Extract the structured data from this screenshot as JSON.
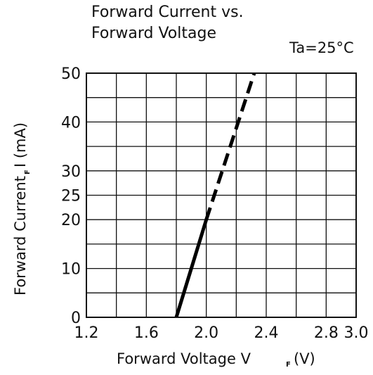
{
  "chart_data": {
    "type": "line",
    "title_line1": "Forward Current vs.",
    "title_line2": "Forward Voltage",
    "condition": "Ta=25°C",
    "xlabel_main": "Forward Voltage   V",
    "xlabel_sub": "F",
    "xlabel_unit": "(V)",
    "ylabel_main": "Forward Current",
    "ylabel_sub": "F",
    "ylabel_unit": "I (mA)",
    "xlim": [
      1.2,
      3.0
    ],
    "ylim": [
      0,
      50
    ],
    "x_ticks": [
      {
        "value": 1.2,
        "label": "1.2"
      },
      {
        "value": 1.6,
        "label": "1.6"
      },
      {
        "value": 2.0,
        "label": "2.0"
      },
      {
        "value": 2.4,
        "label": "2.4"
      },
      {
        "value": 2.8,
        "label": "2.8"
      },
      {
        "value": 3.0,
        "label": "3.0"
      }
    ],
    "y_ticks": [
      {
        "value": 0,
        "label": "0"
      },
      {
        "value": 10,
        "label": "10"
      },
      {
        "value": 20,
        "label": "20"
      },
      {
        "value": 25,
        "label": "25"
      },
      {
        "value": 30,
        "label": "30"
      },
      {
        "value": 40,
        "label": "40"
      },
      {
        "value": 50,
        "label": "50"
      }
    ],
    "grid": true,
    "x_gridlines": [
      1.2,
      1.4,
      1.6,
      1.8,
      2.0,
      2.2,
      2.4,
      2.6,
      2.8,
      3.0
    ],
    "y_gridlines": [
      0,
      5,
      10,
      15,
      20,
      25,
      30,
      35,
      40,
      45,
      50
    ],
    "series": [
      {
        "style": "solid",
        "points": [
          {
            "x": 1.8,
            "y": 0
          },
          {
            "x": 2.0,
            "y": 20
          }
        ]
      },
      {
        "style": "dashed",
        "points": [
          {
            "x": 2.0,
            "y": 20
          },
          {
            "x": 2.32,
            "y": 50
          }
        ]
      }
    ]
  }
}
